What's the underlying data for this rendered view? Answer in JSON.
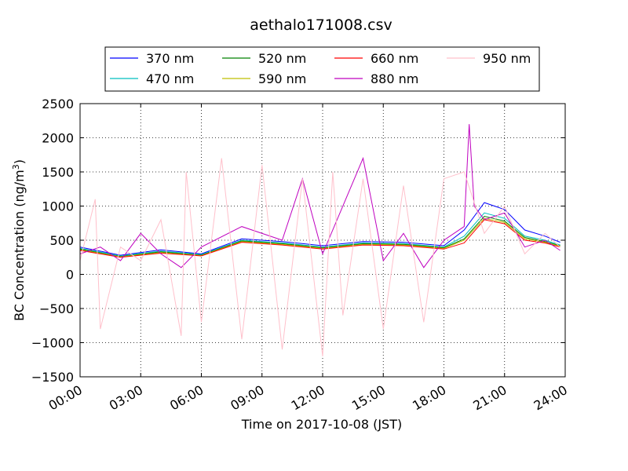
{
  "chart_data": {
    "type": "line",
    "title": "aethalo171008.csv",
    "xlabel": "Time on 2017-10-08 (JST)",
    "ylabel_main": "BC Concentration (ng/m",
    "ylabel_sup": "3",
    "ylabel_close": ")",
    "xlim": [
      "00:00",
      "24:00"
    ],
    "ylim": [
      -1500,
      2500
    ],
    "xticks": [
      "00:00",
      "03:00",
      "06:00",
      "09:00",
      "12:00",
      "15:00",
      "18:00",
      "21:00",
      "24:00"
    ],
    "yticks": [
      -1500,
      -1000,
      -500,
      0,
      500,
      1000,
      1500,
      2000,
      2500
    ],
    "ytick_labels": [
      "−1500",
      "−1000",
      "−500",
      "0",
      "500",
      "1000",
      "1500",
      "2000",
      "2500"
    ],
    "grid": true,
    "legend_position": "top",
    "series": [
      {
        "name": "370 nm",
        "color": "#0000ff",
        "x": [
          "00:00",
          "02:00",
          "04:00",
          "06:00",
          "08:00",
          "10:00",
          "12:00",
          "14:00",
          "16:00",
          "18:00",
          "19:00",
          "20:00",
          "21:00",
          "22:00",
          "23:00",
          "23:45"
        ],
        "y": [
          400,
          280,
          360,
          300,
          520,
          480,
          420,
          480,
          470,
          420,
          650,
          1050,
          950,
          650,
          560,
          470
        ]
      },
      {
        "name": "470 nm",
        "color": "#00bfbf",
        "x": [
          "00:00",
          "02:00",
          "04:00",
          "06:00",
          "08:00",
          "10:00",
          "12:00",
          "14:00",
          "16:00",
          "18:00",
          "19:00",
          "20:00",
          "21:00",
          "22:00",
          "23:00",
          "23:45"
        ],
        "y": [
          380,
          270,
          340,
          290,
          500,
          460,
          400,
          460,
          450,
          400,
          560,
          900,
          820,
          560,
          500,
          430
        ]
      },
      {
        "name": "520 nm",
        "color": "#008000",
        "x": [
          "00:00",
          "02:00",
          "04:00",
          "06:00",
          "08:00",
          "10:00",
          "12:00",
          "14:00",
          "16:00",
          "18:00",
          "19:00",
          "20:00",
          "21:00",
          "22:00",
          "23:00",
          "23:45"
        ],
        "y": [
          370,
          260,
          330,
          280,
          490,
          450,
          390,
          450,
          440,
          390,
          520,
          850,
          780,
          540,
          480,
          420
        ]
      },
      {
        "name": "590 nm",
        "color": "#bfbf00",
        "x": [
          "00:00",
          "02:00",
          "04:00",
          "06:00",
          "08:00",
          "10:00",
          "12:00",
          "14:00",
          "16:00",
          "18:00",
          "19:00",
          "20:00",
          "21:00",
          "22:00",
          "23:00",
          "23:45"
        ],
        "y": [
          360,
          255,
          320,
          275,
          480,
          440,
          380,
          440,
          430,
          380,
          500,
          820,
          760,
          520,
          470,
          410
        ]
      },
      {
        "name": "660 nm",
        "color": "#ff0000",
        "x": [
          "00:00",
          "02:00",
          "04:00",
          "06:00",
          "08:00",
          "10:00",
          "12:00",
          "14:00",
          "16:00",
          "18:00",
          "19:00",
          "20:00",
          "21:00",
          "22:00",
          "23:00",
          "23:45"
        ],
        "y": [
          350,
          250,
          310,
          270,
          470,
          430,
          370,
          430,
          420,
          370,
          460,
          800,
          740,
          500,
          460,
          400
        ]
      },
      {
        "name": "880 nm",
        "color": "#bf00bf",
        "x": [
          "00:00",
          "01:00",
          "02:00",
          "03:00",
          "04:00",
          "05:00",
          "06:00",
          "08:00",
          "10:00",
          "11:00",
          "12:00",
          "14:00",
          "15:00",
          "16:00",
          "17:00",
          "18:00",
          "19:00",
          "19:15",
          "19:30",
          "20:00",
          "21:00",
          "22:00",
          "23:00",
          "23:45"
        ],
        "y": [
          300,
          400,
          200,
          600,
          300,
          100,
          400,
          700,
          500,
          1400,
          300,
          1700,
          200,
          600,
          100,
          500,
          700,
          2200,
          1000,
          800,
          900,
          400,
          500,
          350
        ]
      },
      {
        "name": "950 nm",
        "color": "#ffc0cb",
        "x": [
          "00:00",
          "00:45",
          "01:00",
          "02:00",
          "03:00",
          "04:00",
          "05:00",
          "05:15",
          "06:00",
          "07:00",
          "08:00",
          "09:00",
          "10:00",
          "11:00",
          "12:00",
          "12:30",
          "13:00",
          "14:00",
          "15:00",
          "16:00",
          "17:00",
          "18:00",
          "19:00",
          "20:00",
          "21:00",
          "22:00",
          "23:00",
          "23:45"
        ],
        "y": [
          200,
          1100,
          -800,
          400,
          200,
          800,
          -900,
          1500,
          -700,
          1700,
          -950,
          1600,
          -1100,
          1400,
          -1200,
          1500,
          -600,
          1400,
          -800,
          1300,
          -700,
          1400,
          1500,
          600,
          1000,
          300,
          600,
          400
        ]
      }
    ]
  }
}
